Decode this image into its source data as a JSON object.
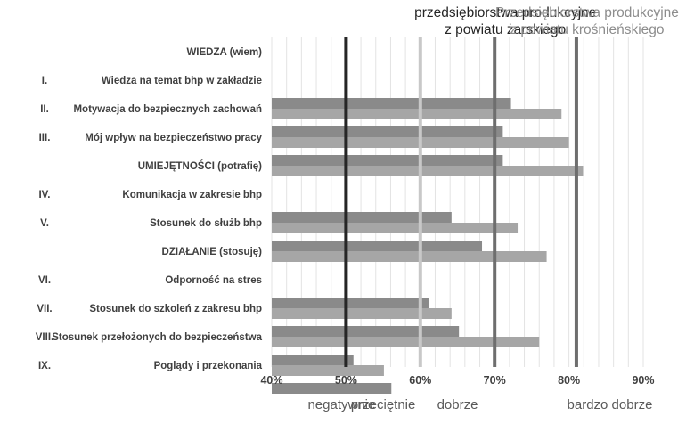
{
  "chart_data": {
    "type": "bar",
    "orientation": "horizontal",
    "xlim": [
      40,
      90
    ],
    "x_ticks": [
      "40%",
      "50%",
      "60%",
      "70%",
      "80%",
      "90%"
    ],
    "zone_labels": [
      "negatywnie",
      "przeciętnie",
      "dobrze",
      "bardzo dobrze"
    ],
    "reference_lines": [
      {
        "value": 50,
        "color": "#262626",
        "label_lines": [],
        "header_class": ""
      },
      {
        "value": 60,
        "color": "#c8c8c8",
        "label_lines": [],
        "header_class": ""
      },
      {
        "value": 70,
        "color": "#6e6e6e",
        "label_lines": [
          "przedsiębiorstwa produkcyjne",
          "z powiatu żarskiego"
        ],
        "header_class": "hdr-dark"
      },
      {
        "value": 81,
        "color": "#6e6e6e",
        "label_lines": [
          "Przedsiębiorstwa produkcyjne",
          "z powiatu krośnieńskiego"
        ],
        "header_class": "hdr-light"
      }
    ],
    "rows": [
      {
        "roman": "",
        "label": "WIEDZA (wiem)",
        "is_section": true
      },
      {
        "roman": "I.",
        "label": "Wiedza na temat bhp w zakładzie",
        "is_section": false
      },
      {
        "roman": "II.",
        "label": "Motywacja do bezpiecznych zachowań",
        "is_section": false
      },
      {
        "roman": "III.",
        "label": "Mój wpływ na bezpieczeństwo pracy",
        "is_section": false
      },
      {
        "roman": "",
        "label": "UMIEJĘTNOŚCI (potrafię)",
        "is_section": true
      },
      {
        "roman": "IV.",
        "label": "Komunikacja w zakresie bhp",
        "is_section": false
      },
      {
        "roman": "V.",
        "label": "Stosunek do służb bhp",
        "is_section": false
      },
      {
        "roman": "",
        "label": "DZIAŁANIE (stosuję)",
        "is_section": true
      },
      {
        "roman": "VI.",
        "label": "Odporność na stres",
        "is_section": false
      },
      {
        "roman": "VII.",
        "label": "Stosunek do szkoleń z zakresu bhp",
        "is_section": false
      },
      {
        "roman": "VIII.",
        "label": "Stosunek przełożonych do bezpieczeństwa",
        "is_section": false
      },
      {
        "roman": "IX.",
        "label": "Poglądy i przekonania",
        "is_section": false
      }
    ],
    "series": [
      {
        "values": [
          null,
          72.2,
          71.1,
          71.1,
          null,
          64.2,
          68.3,
          null,
          61.1,
          65.2,
          51.0,
          56.1
        ],
        "color": "#8a8a8a"
      },
      {
        "values": [
          null,
          79.0,
          80.0,
          81.9,
          null,
          73.1,
          77.0,
          null,
          64.2,
          76.0,
          55.1,
          null
        ],
        "color": "#a6a6a6"
      }
    ],
    "grid": true
  }
}
